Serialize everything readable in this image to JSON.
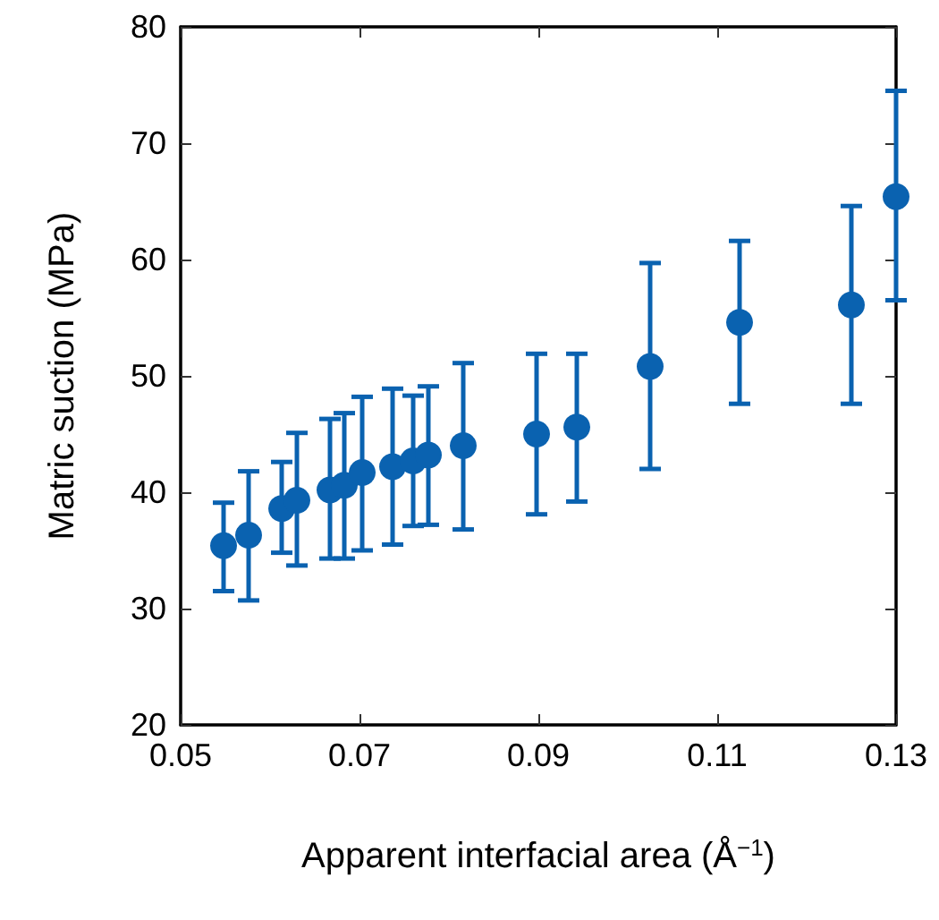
{
  "chart_data": {
    "type": "scatter",
    "xlabel": "Apparent interfacial area (Å$^{−1}$)",
    "ylabel": "Matric suction (MPa)",
    "x": [
      0.0548,
      0.0576,
      0.0613,
      0.063,
      0.0667,
      0.0683,
      0.0703,
      0.0737,
      0.076,
      0.0777,
      0.0816,
      0.0898,
      0.0943,
      0.1025,
      0.1125,
      0.125,
      0.13
    ],
    "series": [
      {
        "color": "#0a62b0",
        "values": [
          35.4,
          36.3,
          38.6,
          39.3,
          40.2,
          40.6,
          41.7,
          42.2,
          42.7,
          43.2,
          44.0,
          45.0,
          45.6,
          50.8,
          54.6,
          56.1,
          65.4
        ],
        "errors": [
          [
            31.5,
            39.1
          ],
          [
            30.7,
            41.8
          ],
          [
            34.8,
            42.6
          ],
          [
            33.7,
            45.1
          ],
          [
            34.3,
            46.3
          ],
          [
            34.3,
            46.8
          ],
          [
            35.0,
            48.2
          ],
          [
            35.5,
            48.9
          ],
          [
            37.1,
            48.3
          ],
          [
            37.2,
            49.1
          ],
          [
            36.8,
            51.1
          ],
          [
            38.1,
            51.9
          ],
          [
            39.2,
            51.9
          ],
          [
            42.0,
            59.7
          ],
          [
            47.6,
            61.6
          ],
          [
            47.6,
            64.6
          ],
          [
            56.5,
            74.5
          ]
        ]
      }
    ],
    "xlim": [
      0.05,
      0.13
    ],
    "xticks": [
      0.05,
      0.07,
      0.09,
      0.11,
      0.13
    ],
    "ylim": [
      20,
      80
    ],
    "yticks": [
      20,
      30,
      40,
      50,
      60,
      70,
      80
    ],
    "marker": "circle"
  }
}
